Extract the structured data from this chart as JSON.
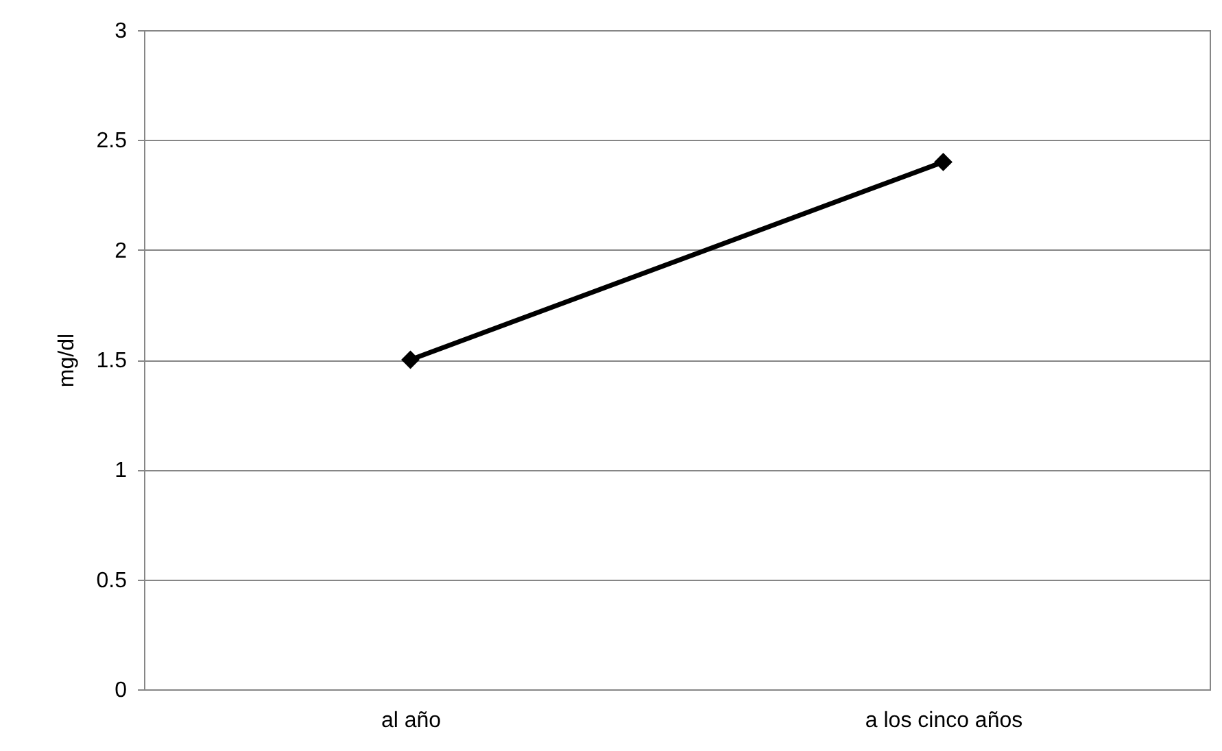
{
  "chart_data": {
    "type": "line",
    "ylabel": "mg/dl",
    "categories": [
      "al año",
      "a los cinco años"
    ],
    "series": [
      {
        "color": "#000000",
        "values": [
          1.5,
          2.4
        ]
      }
    ],
    "ylim": [
      0,
      3
    ],
    "yticks": [
      0,
      0.5,
      1,
      1.5,
      2,
      2.5,
      3
    ],
    "grid": "y",
    "marker": "diamond",
    "line_style": "solid"
  }
}
